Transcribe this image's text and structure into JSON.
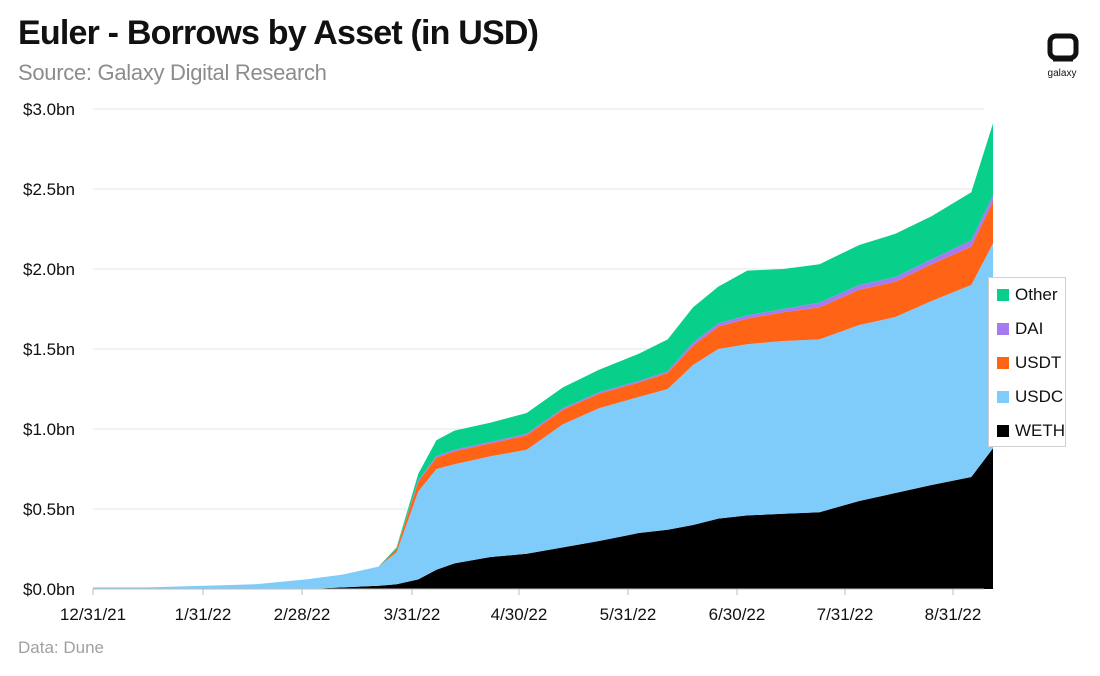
{
  "header": {
    "title": "Euler - Borrows by Asset (in USD)",
    "subtitle": "Source: Galaxy Digital Research"
  },
  "footer": {
    "note": "Data: Dune"
  },
  "logo": {
    "icon": "galaxy-logo-icon",
    "text": "galaxy"
  },
  "chart_data": {
    "type": "area",
    "stacked": true,
    "title": "Euler - Borrows by Asset (in USD)",
    "xlabel": "",
    "ylabel": "",
    "ylim": [
      0,
      3.0
    ],
    "grid": true,
    "legend_position": "right",
    "x_tick_labels": [
      "12/31/21",
      "1/31/22",
      "2/28/22",
      "3/31/22",
      "4/30/22",
      "5/31/22",
      "6/30/22",
      "7/31/22",
      "8/31/22"
    ],
    "y_tick_labels": [
      "$0.0bn",
      "$0.5bn",
      "$1.0bn",
      "$1.5bn",
      "$2.0bn",
      "$2.5bn",
      "$3.0bn"
    ],
    "y_ticks": [
      0,
      0.5,
      1.0,
      1.5,
      2.0,
      2.5,
      3.0
    ],
    "x": [
      "2021-12-31",
      "2022-01-15",
      "2022-01-31",
      "2022-02-14",
      "2022-02-28",
      "2022-03-10",
      "2022-03-20",
      "2022-03-25",
      "2022-03-31",
      "2022-04-05",
      "2022-04-10",
      "2022-04-20",
      "2022-04-30",
      "2022-05-10",
      "2022-05-20",
      "2022-05-31",
      "2022-06-08",
      "2022-06-15",
      "2022-06-22",
      "2022-06-30",
      "2022-07-10",
      "2022-07-20",
      "2022-07-31",
      "2022-08-10",
      "2022-08-20",
      "2022-08-31",
      "2022-09-06"
    ],
    "series": [
      {
        "name": "WETH",
        "color": "#000000",
        "values": [
          0.0,
          0.0,
          0.0,
          0.0,
          0.0,
          0.01,
          0.02,
          0.03,
          0.06,
          0.12,
          0.16,
          0.2,
          0.22,
          0.26,
          0.3,
          0.35,
          0.37,
          0.4,
          0.44,
          0.46,
          0.47,
          0.48,
          0.55,
          0.6,
          0.65,
          0.7,
          0.88
        ]
      },
      {
        "name": "USDC",
        "color": "#7fccfa",
        "values": [
          0.01,
          0.01,
          0.02,
          0.03,
          0.06,
          0.08,
          0.12,
          0.2,
          0.55,
          0.63,
          0.62,
          0.63,
          0.65,
          0.77,
          0.83,
          0.85,
          0.88,
          1.0,
          1.06,
          1.07,
          1.08,
          1.08,
          1.1,
          1.1,
          1.15,
          1.2,
          1.28
        ]
      },
      {
        "name": "USDT",
        "color": "#ff6316",
        "values": [
          0.0,
          0.0,
          0.0,
          0.0,
          0.0,
          0.0,
          0.0,
          0.02,
          0.06,
          0.07,
          0.08,
          0.08,
          0.09,
          0.09,
          0.09,
          0.09,
          0.1,
          0.12,
          0.14,
          0.16,
          0.18,
          0.2,
          0.22,
          0.22,
          0.23,
          0.24,
          0.26
        ]
      },
      {
        "name": "DAI",
        "color": "#a77bf0",
        "values": [
          0.0,
          0.0,
          0.0,
          0.0,
          0.0,
          0.0,
          0.0,
          0.0,
          0.01,
          0.01,
          0.01,
          0.01,
          0.01,
          0.01,
          0.01,
          0.01,
          0.01,
          0.02,
          0.02,
          0.02,
          0.02,
          0.03,
          0.03,
          0.03,
          0.03,
          0.04,
          0.04
        ]
      },
      {
        "name": "Other",
        "color": "#08cf8a",
        "values": [
          0.0,
          0.0,
          0.0,
          0.0,
          0.0,
          0.0,
          0.0,
          0.01,
          0.04,
          0.1,
          0.12,
          0.12,
          0.13,
          0.13,
          0.14,
          0.17,
          0.2,
          0.22,
          0.23,
          0.28,
          0.25,
          0.24,
          0.25,
          0.27,
          0.27,
          0.3,
          0.45
        ]
      }
    ]
  }
}
